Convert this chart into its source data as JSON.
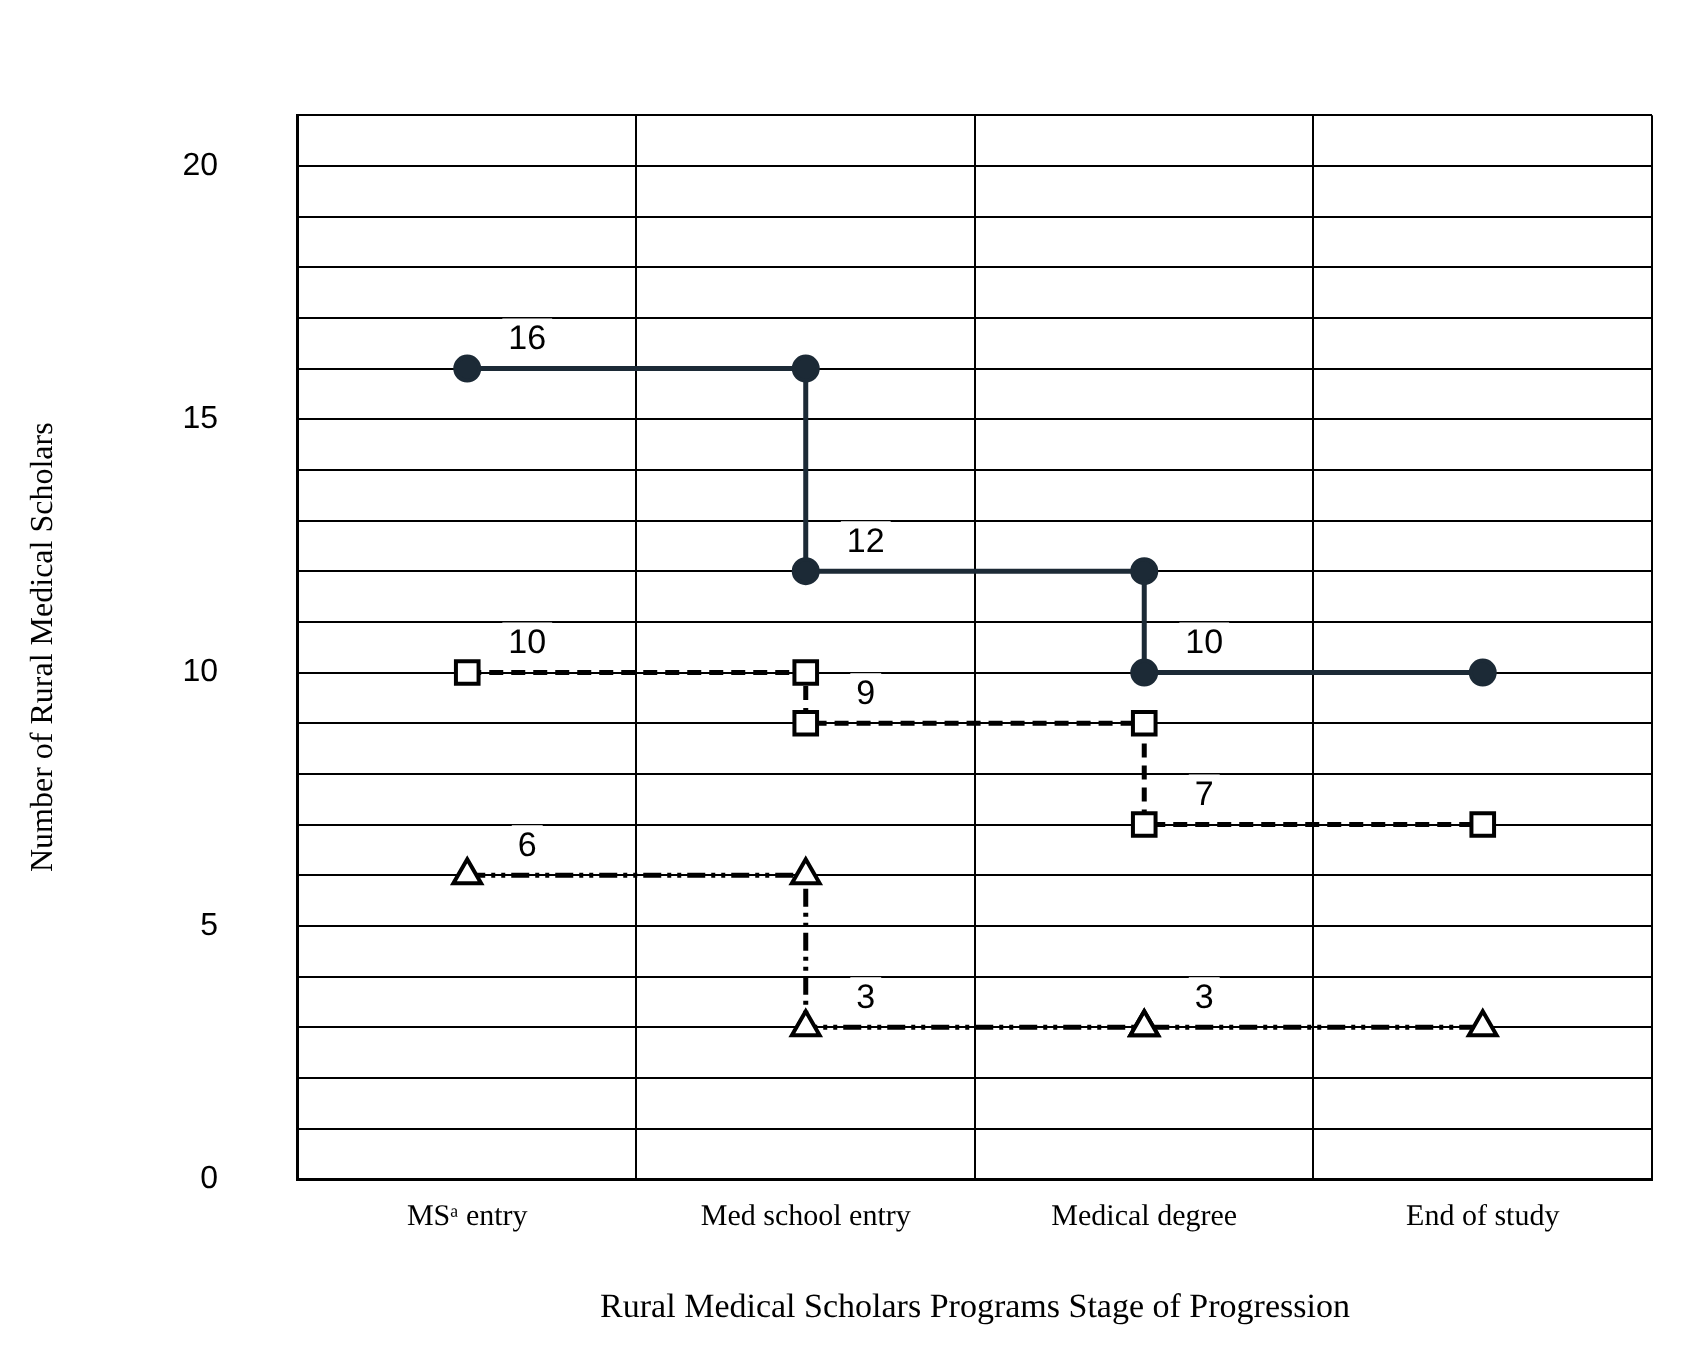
{
  "chart_data": {
    "type": "line",
    "xlabel": "Rural Medical Scholars Programs Stage of Progression",
    "ylabel": "Number of Rural Medical Scholars",
    "categories": [
      "MSᵃ entry",
      "Med school entry",
      "Medical degree",
      "End of study"
    ],
    "series": [
      {
        "color": "#1c2a36",
        "marker": "circle",
        "line_style": "solid",
        "x": [
          "MSᵃ entry",
          "Med school entry",
          "Med school entry",
          "Medical degree",
          "Medical degree",
          "End of study"
        ],
        "values": [
          16,
          16,
          12,
          12,
          10,
          10
        ],
        "value_labels": [
          "16",
          null,
          "12",
          null,
          "10",
          null
        ]
      },
      {
        "color": "#000000",
        "marker": "square",
        "line_style": "dashed",
        "x": [
          "MSᵃ entry",
          "Med school entry",
          "Med school entry",
          "Medical degree",
          "Medical degree",
          "End of study"
        ],
        "values": [
          10,
          10,
          9,
          9,
          7,
          7
        ],
        "value_labels": [
          "10",
          null,
          "9",
          null,
          "7",
          null
        ]
      },
      {
        "color": "#000000",
        "marker": "triangle",
        "line_style": "dotted",
        "x": [
          "MSᵃ entry",
          "Med school entry",
          "Med school entry",
          "Medical degree",
          "Medical degree",
          "End of study"
        ],
        "values": [
          6,
          6,
          3,
          3,
          3,
          3
        ],
        "value_labels": [
          "6",
          null,
          "3",
          null,
          "3",
          null
        ]
      }
    ],
    "ylim": [
      0,
      21
    ],
    "yticks": [
      0,
      {
        "value": 1,
        "label": null
      },
      {
        "value": 2,
        "label": null
      },
      {
        "value": 3,
        "label": null
      },
      {
        "value": 4,
        "label": null
      },
      5,
      {
        "value": 6,
        "label": null
      },
      {
        "value": 7,
        "label": null
      },
      {
        "value": 8,
        "label": null
      },
      {
        "value": 9,
        "label": null
      },
      10,
      {
        "value": 11,
        "label": null
      },
      {
        "value": 12,
        "label": null
      },
      {
        "value": 13,
        "label": null
      },
      {
        "value": 14,
        "label": null
      },
      15,
      {
        "value": 16,
        "label": null
      },
      {
        "value": 17,
        "label": null
      },
      {
        "value": 18,
        "label": null
      },
      {
        "value": 19,
        "label": null
      },
      20,
      {
        "value": 21,
        "label": null
      }
    ],
    "grid": true,
    "legend": false
  }
}
